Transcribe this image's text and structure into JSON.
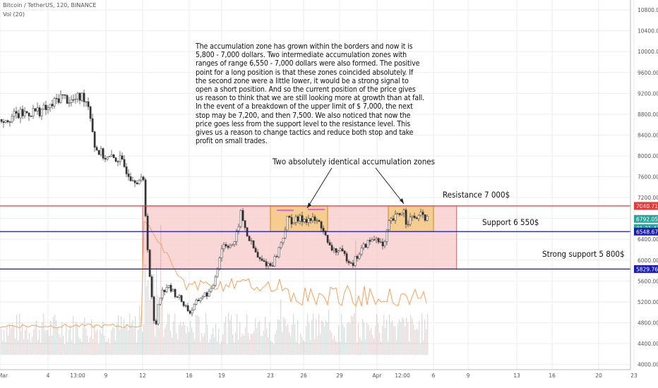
{
  "header": {
    "symbol": "Bitcoin / TetherUS, 120, BINANCE",
    "indicator": "Vol (20)"
  },
  "colors": {
    "up": "#26a69a",
    "down": "#ef5350",
    "resistance": "#e53935",
    "support": "#1a1ab5",
    "zone_fill": "#f8c9c9",
    "small_zone_fill": "#f5c76b",
    "ma_line": "#f5a25d",
    "grid": "#eeeeee"
  },
  "annotations": {
    "main_text": "The accumulation zone has grown within the borders and now it is 5,800 - 7,000 dollars. Two intermediate accumulation zones with ranges of range 6,550 - 7,000 dollars were also formed. The positive point for a long position is that these zones coincided absolutely. If the second zone were a little lower, it would be a strong signal to open a short position. And so the current position of the price gives us reason to think that we are still looking more at growth than at fall. In the event of a breakdown of the upper limit of $ 7,000, the next stop may be 7,200, and then 7,500. We also noticed that now the price goes less from the support level to the resistance level. This gives us a reason to change tactics and reduce both stop and take profit on small trades.",
    "zones_label": "Two absolutely identical accumulation zones",
    "resistance_label": "Resistance 7 000$",
    "support_label": "Support 6 550$",
    "strong_support_label": "Strong support 5 800$"
  },
  "price_tags": {
    "resistance": "7040.71",
    "current": "6792.05",
    "countdown": "01:21:43",
    "support": "6548.67",
    "strong_support": "5829.76"
  },
  "chart_data": {
    "type": "candlestick",
    "title": "Bitcoin / TetherUS, 120, BINANCE",
    "y_ticks": [
      10800,
      10400,
      10000,
      9600,
      9200,
      8800,
      8400,
      8000,
      7600,
      7200,
      6800,
      6400,
      6000,
      5600,
      5200,
      4800,
      4400,
      4000
    ],
    "ylim": [
      3900,
      11050
    ],
    "x_ticks": [
      "Mar",
      "4",
      "13:00",
      "9",
      "12",
      "16",
      "19",
      "23",
      "26",
      "29",
      "Apr",
      "12:00",
      "6",
      "9",
      "13",
      "16",
      "20",
      "23"
    ],
    "price_path": [
      {
        "x": "Mar 1",
        "y": 8700
      },
      {
        "x": "Mar 3",
        "y": 8850
      },
      {
        "x": "Mar 4",
        "y": 8900
      },
      {
        "x": "Mar 5",
        "y": 9150
      },
      {
        "x": "Mar 6",
        "y": 9050
      },
      {
        "x": "Mar 7",
        "y": 9150
      },
      {
        "x": "Mar 7 12:00",
        "y": 8950
      },
      {
        "x": "Mar 8",
        "y": 8150
      },
      {
        "x": "Mar 9",
        "y": 7950
      },
      {
        "x": "Mar 10",
        "y": 7950
      },
      {
        "x": "Mar 11",
        "y": 7600
      },
      {
        "x": "Mar 12",
        "y": 7500
      },
      {
        "x": "Mar 12 12:00",
        "y": 5800
      },
      {
        "x": "Mar 13",
        "y": 4600
      },
      {
        "x": "Mar 13 08:00",
        "y": 5300
      },
      {
        "x": "Mar 14",
        "y": 5500
      },
      {
        "x": "Mar 15",
        "y": 5300
      },
      {
        "x": "Mar 16",
        "y": 5000
      },
      {
        "x": "Mar 17",
        "y": 5300
      },
      {
        "x": "Mar 18",
        "y": 5400
      },
      {
        "x": "Mar 19",
        "y": 6300
      },
      {
        "x": "Mar 20",
        "y": 6300
      },
      {
        "x": "Mar 20 12:00",
        "y": 6900
      },
      {
        "x": "Mar 21",
        "y": 6500
      },
      {
        "x": "Mar 22",
        "y": 6000
      },
      {
        "x": "Mar 23",
        "y": 5900
      },
      {
        "x": "Mar 23 12:00",
        "y": 6100
      },
      {
        "x": "Mar 24",
        "y": 6400
      },
      {
        "x": "Mar 24 12:00",
        "y": 6800
      },
      {
        "x": "Mar 25",
        "y": 6750
      },
      {
        "x": "Mar 26",
        "y": 6800
      },
      {
        "x": "Mar 27",
        "y": 6750
      },
      {
        "x": "Mar 27 12:00",
        "y": 6650
      },
      {
        "x": "Mar 28",
        "y": 6250
      },
      {
        "x": "Mar 29",
        "y": 6150
      },
      {
        "x": "Mar 30",
        "y": 5950
      },
      {
        "x": "Mar 31",
        "y": 6300
      },
      {
        "x": "Apr 1",
        "y": 6450
      },
      {
        "x": "Apr 1 12:00",
        "y": 6200
      },
      {
        "x": "Apr 2",
        "y": 6700
      },
      {
        "x": "Apr 3",
        "y": 6900
      },
      {
        "x": "Apr 3 06:00",
        "y": 7000
      },
      {
        "x": "Apr 3 12:00",
        "y": 6750
      },
      {
        "x": "Apr 4",
        "y": 6800
      },
      {
        "x": "Apr 5",
        "y": 6850
      },
      {
        "x": "Apr 5 12:00",
        "y": 6800
      }
    ],
    "levels": [
      {
        "name": "Resistance 7 000$",
        "value": 7040.71
      },
      {
        "name": "Support 6 550$",
        "value": 6548.67
      },
      {
        "name": "Strong support 5 800$",
        "value": 5829.76
      }
    ],
    "zones": [
      {
        "type": "accumulation",
        "from": "Mar 12",
        "to": "Apr 8",
        "low": 5830,
        "high": 7040
      },
      {
        "type": "intermediate",
        "from": "Mar 23",
        "to": "Mar 28",
        "low": 6550,
        "high": 7040
      },
      {
        "type": "intermediate",
        "from": "Apr 2",
        "to": "Apr 6",
        "low": 6550,
        "high": 7040
      }
    ],
    "last_price": 6792.05,
    "grid": true
  }
}
